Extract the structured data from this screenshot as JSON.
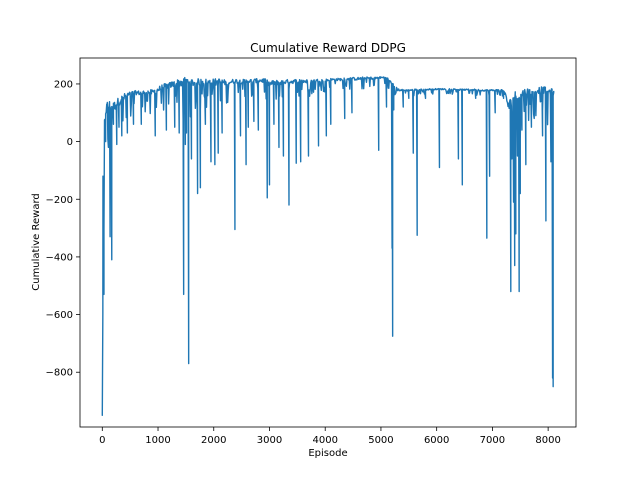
{
  "chart_data": {
    "type": "line",
    "title": "Cumulative Reward DDPG",
    "xlabel": "Episode",
    "ylabel": "Cumulative Reward",
    "xlim": [
      -400,
      8500
    ],
    "ylim": [
      -990,
      290
    ],
    "xticks": [
      0,
      1000,
      2000,
      3000,
      4000,
      5000,
      6000,
      7000,
      8000
    ],
    "yticks": [
      200,
      0,
      -200,
      -400,
      -600,
      -800
    ],
    "ytick_labels": [
      "200",
      "0",
      "−200",
      "−400",
      "−600",
      "−800"
    ],
    "grid": false,
    "legend": "none",
    "color": "#1f77b4",
    "series": [
      {
        "baseline": [
          [
            0,
            -940
          ],
          [
            20,
            -300
          ],
          [
            40,
            60
          ],
          [
            60,
            110
          ],
          [
            100,
            125
          ],
          [
            200,
            120
          ],
          [
            300,
            140
          ],
          [
            400,
            155
          ],
          [
            500,
            165
          ],
          [
            600,
            170
          ],
          [
            700,
            168
          ],
          [
            800,
            172
          ],
          [
            900,
            170
          ],
          [
            1000,
            180
          ],
          [
            1100,
            190
          ],
          [
            1200,
            195
          ],
          [
            1300,
            200
          ],
          [
            1400,
            205
          ],
          [
            1500,
            210
          ],
          [
            1600,
            205
          ],
          [
            1700,
            205
          ],
          [
            1800,
            207
          ],
          [
            1900,
            205
          ],
          [
            2000,
            205
          ],
          [
            2100,
            208
          ],
          [
            2200,
            205
          ],
          [
            2300,
            207
          ],
          [
            2400,
            210
          ],
          [
            2500,
            208
          ],
          [
            2600,
            210
          ],
          [
            2700,
            210
          ],
          [
            2800,
            212
          ],
          [
            2900,
            212
          ],
          [
            3000,
            200
          ],
          [
            3100,
            205
          ],
          [
            3200,
            205
          ],
          [
            3300,
            208
          ],
          [
            3400,
            208
          ],
          [
            3500,
            210
          ],
          [
            3600,
            210
          ],
          [
            3700,
            208
          ],
          [
            3800,
            210
          ],
          [
            3900,
            212
          ],
          [
            4000,
            212
          ],
          [
            4100,
            215
          ],
          [
            4200,
            215
          ],
          [
            4300,
            216
          ],
          [
            4400,
            218
          ],
          [
            4500,
            218
          ],
          [
            4600,
            218
          ],
          [
            4700,
            220
          ],
          [
            4800,
            220
          ],
          [
            4900,
            220
          ],
          [
            5000,
            222
          ],
          [
            5100,
            222
          ],
          [
            5200,
            200
          ],
          [
            5300,
            180
          ],
          [
            5400,
            178
          ],
          [
            5500,
            178
          ],
          [
            5600,
            180
          ],
          [
            5700,
            180
          ],
          [
            5800,
            180
          ],
          [
            5900,
            182
          ],
          [
            6000,
            182
          ],
          [
            6100,
            182
          ],
          [
            6200,
            182
          ],
          [
            6300,
            182
          ],
          [
            6400,
            180
          ],
          [
            6500,
            180
          ],
          [
            6600,
            180
          ],
          [
            6700,
            180
          ],
          [
            6800,
            178
          ],
          [
            6900,
            178
          ],
          [
            7000,
            178
          ],
          [
            7100,
            178
          ],
          [
            7200,
            178
          ],
          [
            7300,
            120
          ],
          [
            7400,
            150
          ],
          [
            7500,
            160
          ],
          [
            7600,
            170
          ],
          [
            7700,
            175
          ],
          [
            7800,
            178
          ],
          [
            7900,
            180
          ],
          [
            8000,
            175
          ],
          [
            8100,
            170
          ]
        ],
        "amplitude": [
          [
            0,
            140
          ],
          [
            200,
            100
          ],
          [
            400,
            70
          ],
          [
            600,
            40
          ],
          [
            800,
            50
          ],
          [
            1000,
            60
          ],
          [
            1200,
            55
          ],
          [
            1400,
            90
          ],
          [
            1600,
            80
          ],
          [
            1800,
            70
          ],
          [
            2000,
            75
          ],
          [
            2200,
            55
          ],
          [
            2400,
            45
          ],
          [
            2600,
            40
          ],
          [
            2800,
            40
          ],
          [
            3000,
            55
          ],
          [
            3200,
            45
          ],
          [
            3400,
            40
          ],
          [
            3600,
            40
          ],
          [
            3800,
            35
          ],
          [
            4000,
            30
          ],
          [
            4200,
            25
          ],
          [
            4400,
            25
          ],
          [
            4600,
            30
          ],
          [
            4800,
            25
          ],
          [
            5000,
            20
          ],
          [
            5200,
            30
          ],
          [
            5400,
            15
          ],
          [
            5600,
            15
          ],
          [
            5800,
            12
          ],
          [
            6000,
            12
          ],
          [
            6200,
            12
          ],
          [
            6400,
            12
          ],
          [
            6600,
            12
          ],
          [
            6800,
            15
          ],
          [
            7000,
            15
          ],
          [
            7200,
            20
          ],
          [
            7300,
            140
          ],
          [
            7400,
            150
          ],
          [
            7500,
            120
          ],
          [
            7600,
            90
          ],
          [
            7700,
            70
          ],
          [
            7800,
            70
          ],
          [
            7900,
            60
          ],
          [
            8000,
            80
          ],
          [
            8100,
            60
          ]
        ],
        "spikes": [
          [
            0,
            -940
          ],
          [
            12,
            -120
          ],
          [
            30,
            -530
          ],
          [
            60,
            0
          ],
          [
            90,
            120
          ],
          [
            110,
            -20
          ],
          [
            140,
            -330
          ],
          [
            160,
            -30
          ],
          [
            170,
            -410
          ],
          [
            200,
            60
          ],
          [
            260,
            -10
          ],
          [
            300,
            50
          ],
          [
            350,
            20
          ],
          [
            450,
            30
          ],
          [
            560,
            60
          ],
          [
            700,
            60
          ],
          [
            950,
            20
          ],
          [
            1150,
            40
          ],
          [
            1300,
            50
          ],
          [
            1380,
            30
          ],
          [
            1460,
            -530
          ],
          [
            1490,
            -10
          ],
          [
            1510,
            30
          ],
          [
            1550,
            -770
          ],
          [
            1600,
            -60
          ],
          [
            1710,
            -180
          ],
          [
            1760,
            -160
          ],
          [
            1850,
            60
          ],
          [
            1950,
            -70
          ],
          [
            2020,
            -80
          ],
          [
            2080,
            -40
          ],
          [
            2150,
            30
          ],
          [
            2380,
            -305
          ],
          [
            2480,
            20
          ],
          [
            2580,
            -80
          ],
          [
            2620,
            50
          ],
          [
            2720,
            70
          ],
          [
            2800,
            40
          ],
          [
            2960,
            -195
          ],
          [
            3000,
            -150
          ],
          [
            3080,
            60
          ],
          [
            3170,
            -20
          ],
          [
            3250,
            -50
          ],
          [
            3350,
            -220
          ],
          [
            3480,
            -75
          ],
          [
            3560,
            -70
          ],
          [
            3700,
            -50
          ],
          [
            3880,
            -15
          ],
          [
            4020,
            20
          ],
          [
            4100,
            60
          ],
          [
            4350,
            80
          ],
          [
            4480,
            100
          ],
          [
            4960,
            -30
          ],
          [
            5100,
            120
          ],
          [
            5200,
            -370
          ],
          [
            5210,
            -675
          ],
          [
            5230,
            110
          ],
          [
            5400,
            120
          ],
          [
            5500,
            150
          ],
          [
            5580,
            -40
          ],
          [
            5650,
            -325
          ],
          [
            5800,
            150
          ],
          [
            6050,
            -90
          ],
          [
            6390,
            -60
          ],
          [
            6460,
            -150
          ],
          [
            6700,
            150
          ],
          [
            6900,
            -335
          ],
          [
            6950,
            -120
          ],
          [
            7050,
            100
          ],
          [
            7200,
            150
          ],
          [
            7330,
            -520
          ],
          [
            7350,
            -60
          ],
          [
            7380,
            -210
          ],
          [
            7400,
            -430
          ],
          [
            7420,
            -320
          ],
          [
            7450,
            -50
          ],
          [
            7480,
            -520
          ],
          [
            7500,
            -180
          ],
          [
            7530,
            40
          ],
          [
            7600,
            -80
          ],
          [
            7700,
            50
          ],
          [
            7900,
            20
          ],
          [
            7960,
            -275
          ],
          [
            8050,
            -70
          ],
          [
            8080,
            -820
          ],
          [
            8090,
            -850
          ],
          [
            8100,
            170
          ]
        ]
      }
    ],
    "x_end": 8100
  }
}
